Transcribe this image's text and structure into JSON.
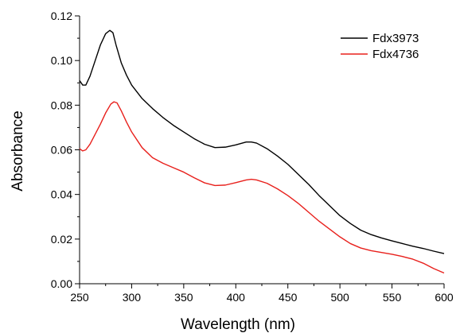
{
  "chart_data": {
    "type": "line",
    "xlabel": "Wavelength (nm)",
    "ylabel": "Absorbance",
    "xlim": [
      250,
      600
    ],
    "ylim": [
      0.0,
      0.12
    ],
    "x_ticks": [
      250,
      300,
      350,
      400,
      450,
      500,
      550,
      600
    ],
    "y_ticks": [
      0.0,
      0.02,
      0.04,
      0.06,
      0.08,
      0.1,
      0.12
    ],
    "y_tick_labels": [
      "0.00",
      "0.02",
      "0.04",
      "0.06",
      "0.08",
      "0.10",
      "0.12"
    ],
    "grid": false,
    "legend_position": "top-right",
    "series": [
      {
        "name": "Fdx3973",
        "color": "#000000",
        "x": [
          250,
          253,
          256,
          260,
          265,
          270,
          275,
          279,
          282,
          285,
          290,
          295,
          300,
          310,
          320,
          330,
          340,
          350,
          360,
          370,
          380,
          390,
          400,
          410,
          415,
          420,
          430,
          440,
          450,
          460,
          470,
          480,
          490,
          500,
          510,
          520,
          530,
          540,
          550,
          560,
          570,
          580,
          590,
          600
        ],
        "y": [
          0.091,
          0.089,
          0.089,
          0.093,
          0.1,
          0.107,
          0.112,
          0.1135,
          0.1125,
          0.107,
          0.099,
          0.0935,
          0.089,
          0.083,
          0.0785,
          0.0745,
          0.071,
          0.068,
          0.065,
          0.0625,
          0.061,
          0.0612,
          0.0622,
          0.0635,
          0.0635,
          0.063,
          0.0605,
          0.0572,
          0.0535,
          0.049,
          0.0445,
          0.0395,
          0.035,
          0.0305,
          0.027,
          0.024,
          0.022,
          0.0205,
          0.0192,
          0.018,
          0.0168,
          0.0158,
          0.0146,
          0.0135
        ]
      },
      {
        "name": "Fdx4736",
        "color": "#e8201c",
        "x": [
          250,
          253,
          256,
          260,
          265,
          270,
          275,
          280,
          283,
          286,
          290,
          295,
          300,
          310,
          320,
          330,
          340,
          350,
          360,
          370,
          380,
          390,
          400,
          410,
          415,
          420,
          430,
          440,
          450,
          460,
          470,
          480,
          490,
          500,
          510,
          520,
          530,
          540,
          550,
          560,
          570,
          580,
          590,
          600
        ],
        "y": [
          0.0605,
          0.0595,
          0.06,
          0.0625,
          0.067,
          0.0715,
          0.0765,
          0.0805,
          0.0815,
          0.081,
          0.0775,
          0.0725,
          0.068,
          0.061,
          0.0565,
          0.054,
          0.052,
          0.05,
          0.0475,
          0.0452,
          0.044,
          0.0442,
          0.0453,
          0.0465,
          0.0468,
          0.0465,
          0.045,
          0.0425,
          0.0395,
          0.036,
          0.032,
          0.028,
          0.0245,
          0.021,
          0.018,
          0.016,
          0.0148,
          0.014,
          0.0132,
          0.0122,
          0.011,
          0.0092,
          0.0068,
          0.0048
        ]
      }
    ]
  }
}
